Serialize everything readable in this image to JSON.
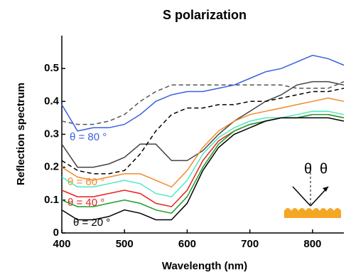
{
  "chart_data": {
    "type": "line",
    "title": "S polarization",
    "x_label": "Wavelength (nm)",
    "y_label": "Reflection spectrum",
    "x": [
      400,
      425,
      450,
      475,
      500,
      525,
      550,
      575,
      600,
      625,
      650,
      675,
      700,
      725,
      750,
      775,
      800,
      825,
      850
    ],
    "xlim": [
      400,
      850
    ],
    "xticks": [
      400,
      500,
      600,
      700,
      800
    ],
    "ylim": [
      0,
      0.6
    ],
    "yticks": [
      0,
      0.1,
      0.2,
      0.3,
      0.4,
      0.5
    ],
    "series": [
      {
        "color": "#555555",
        "dash": true,
        "values": [
          0.34,
          0.33,
          0.33,
          0.34,
          0.36,
          0.4,
          0.43,
          0.45,
          0.45,
          0.45,
          0.45,
          0.45,
          0.45,
          0.45,
          0.45,
          0.44,
          0.44,
          0.44,
          0.46
        ]
      },
      {
        "name": "θ = 80 °",
        "color": "#3a5fe0",
        "values": [
          0.39,
          0.31,
          0.32,
          0.32,
          0.33,
          0.36,
          0.4,
          0.42,
          0.43,
          0.43,
          0.44,
          0.45,
          0.47,
          0.49,
          0.5,
          0.52,
          0.54,
          0.53,
          0.51
        ]
      },
      {
        "color": "#444444",
        "values": [
          0.27,
          0.2,
          0.2,
          0.21,
          0.23,
          0.27,
          0.27,
          0.22,
          0.22,
          0.25,
          0.3,
          0.34,
          0.37,
          0.4,
          0.42,
          0.45,
          0.46,
          0.46,
          0.45
        ]
      },
      {
        "color": "#000000",
        "dash": true,
        "values": [
          0.22,
          0.19,
          0.18,
          0.18,
          0.19,
          0.24,
          0.31,
          0.36,
          0.38,
          0.38,
          0.39,
          0.39,
          0.4,
          0.4,
          0.41,
          0.42,
          0.43,
          0.43,
          0.44
        ]
      },
      {
        "name": "θ = 60 °",
        "color": "#f28a2a",
        "values": [
          0.2,
          0.17,
          0.16,
          0.17,
          0.18,
          0.18,
          0.16,
          0.14,
          0.19,
          0.26,
          0.31,
          0.34,
          0.36,
          0.37,
          0.38,
          0.39,
          0.4,
          0.41,
          0.4
        ]
      },
      {
        "color": "#4de8c0",
        "values": [
          0.17,
          0.14,
          0.14,
          0.15,
          0.16,
          0.15,
          0.12,
          0.11,
          0.16,
          0.24,
          0.29,
          0.32,
          0.34,
          0.35,
          0.35,
          0.36,
          0.37,
          0.37,
          0.36
        ]
      },
      {
        "name": "θ = 40 °",
        "color": "#e82020",
        "values": [
          0.13,
          0.11,
          0.11,
          0.12,
          0.13,
          0.12,
          0.09,
          0.08,
          0.13,
          0.22,
          0.28,
          0.31,
          0.33,
          0.34,
          0.35,
          0.35,
          0.36,
          0.36,
          0.35
        ]
      },
      {
        "color": "#1aa02a",
        "values": [
          0.1,
          0.08,
          0.08,
          0.09,
          0.1,
          0.09,
          0.07,
          0.06,
          0.11,
          0.2,
          0.27,
          0.31,
          0.33,
          0.34,
          0.35,
          0.35,
          0.36,
          0.36,
          0.35
        ]
      },
      {
        "name": "θ = 20 °",
        "color": "#000000",
        "values": [
          0.07,
          0.04,
          0.04,
          0.05,
          0.07,
          0.06,
          0.04,
          0.04,
          0.09,
          0.19,
          0.26,
          0.3,
          0.32,
          0.34,
          0.35,
          0.35,
          0.35,
          0.35,
          0.34
        ]
      }
    ],
    "annotations": [
      "θ",
      "θ"
    ]
  }
}
